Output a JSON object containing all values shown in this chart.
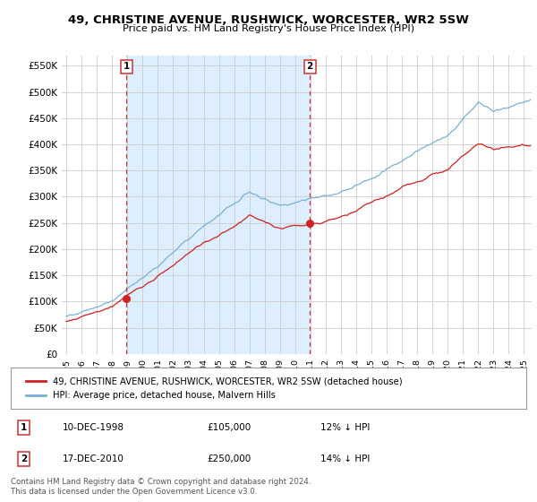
{
  "title": "49, CHRISTINE AVENUE, RUSHWICK, WORCESTER, WR2 5SW",
  "subtitle": "Price paid vs. HM Land Registry's House Price Index (HPI)",
  "ylabel_ticks": [
    "£0",
    "£50K",
    "£100K",
    "£150K",
    "£200K",
    "£250K",
    "£300K",
    "£350K",
    "£400K",
    "£450K",
    "£500K",
    "£550K"
  ],
  "ytick_vals": [
    0,
    50000,
    100000,
    150000,
    200000,
    250000,
    300000,
    350000,
    400000,
    450000,
    500000,
    550000
  ],
  "ylim": [
    0,
    570000
  ],
  "xlim_start": 1994.7,
  "xlim_end": 2025.5,
  "hpi_color": "#7ab0d4",
  "price_color": "#cc2222",
  "vline_color": "#cc3333",
  "shade_color": "#ddeeff",
  "sale1_date": 1998.94,
  "sale1_price": 105000,
  "sale2_date": 2010.96,
  "sale2_price": 250000,
  "legend_line1": "49, CHRISTINE AVENUE, RUSHWICK, WORCESTER, WR2 5SW (detached house)",
  "legend_line2": "HPI: Average price, detached house, Malvern Hills",
  "note1_label": "1",
  "note1_date": "10-DEC-1998",
  "note1_price": "£105,000",
  "note1_pct": "12% ↓ HPI",
  "note2_label": "2",
  "note2_date": "17-DEC-2010",
  "note2_price": "£250,000",
  "note2_pct": "14% ↓ HPI",
  "footer": "Contains HM Land Registry data © Crown copyright and database right 2024.\nThis data is licensed under the Open Government Licence v3.0.",
  "background_color": "#ffffff",
  "grid_color": "#cccccc"
}
